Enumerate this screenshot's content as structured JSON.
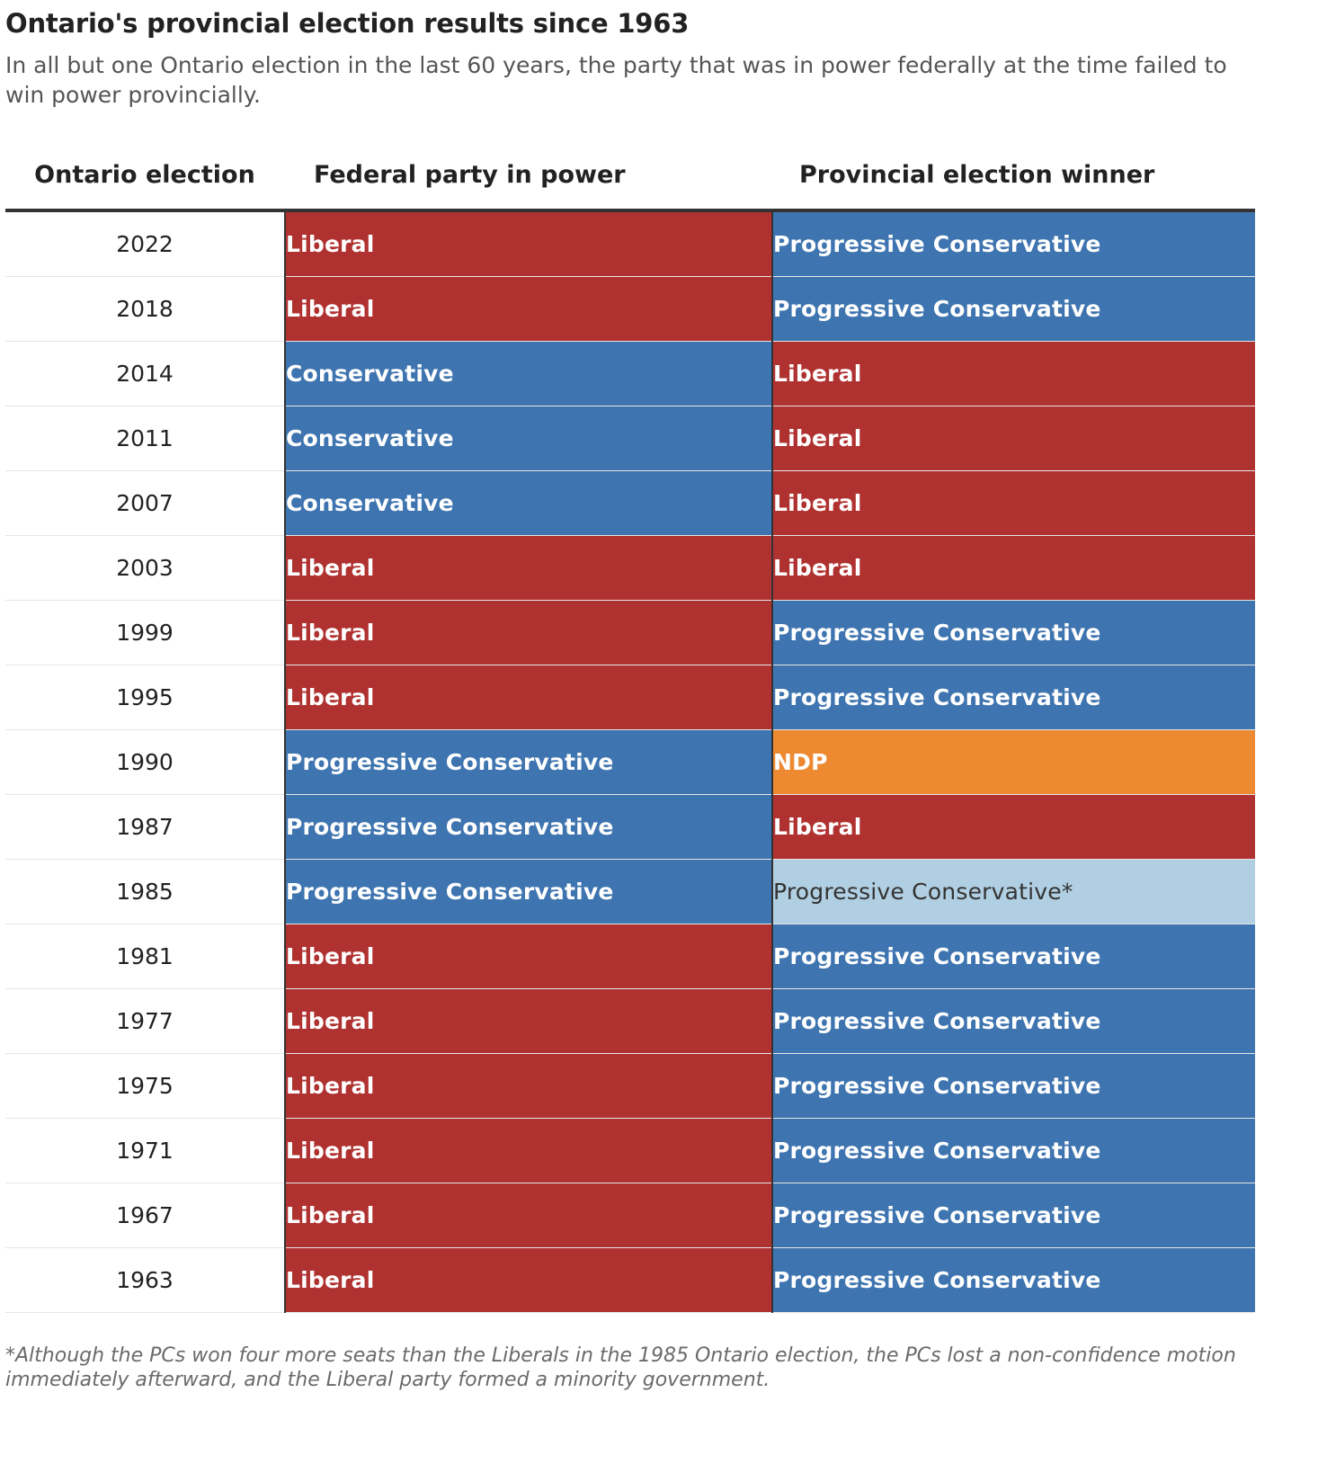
{
  "title": "Ontario's provincial election results since 1963",
  "subtitle": "In all but one Ontario election in the last 60 years, the party that was in power federally at the time failed to win power provincially.",
  "colors": {
    "Liberal": "#b03230",
    "Conservative": "#3e74af",
    "Progressive Conservative": "#3e74af",
    "NDP": "#ec8931",
    "Progressive Conservative*": "#b1cfe2"
  },
  "chart_data": {
    "type": "table",
    "columns": [
      "Ontario election",
      "Federal party in power",
      "Provincial election winner"
    ],
    "rows": [
      {
        "year": "2022",
        "federal": "Liberal",
        "provincial": "Progressive Conservative"
      },
      {
        "year": "2018",
        "federal": "Liberal",
        "provincial": "Progressive Conservative"
      },
      {
        "year": "2014",
        "federal": "Conservative",
        "provincial": "Liberal"
      },
      {
        "year": "2011",
        "federal": "Conservative",
        "provincial": "Liberal"
      },
      {
        "year": "2007",
        "federal": "Conservative",
        "provincial": "Liberal"
      },
      {
        "year": "2003",
        "federal": "Liberal",
        "provincial": "Liberal"
      },
      {
        "year": "1999",
        "federal": "Liberal",
        "provincial": "Progressive Conservative"
      },
      {
        "year": "1995",
        "federal": "Liberal",
        "provincial": "Progressive Conservative"
      },
      {
        "year": "1990",
        "federal": "Progressive Conservative",
        "provincial": "NDP"
      },
      {
        "year": "1987",
        "federal": "Progressive Conservative",
        "provincial": "Liberal"
      },
      {
        "year": "1985",
        "federal": "Progressive Conservative",
        "provincial": "Progressive Conservative*"
      },
      {
        "year": "1981",
        "federal": "Liberal",
        "provincial": "Progressive Conservative"
      },
      {
        "year": "1977",
        "federal": "Liberal",
        "provincial": "Progressive Conservative"
      },
      {
        "year": "1975",
        "federal": "Liberal",
        "provincial": "Progressive Conservative"
      },
      {
        "year": "1971",
        "federal": "Liberal",
        "provincial": "Progressive Conservative"
      },
      {
        "year": "1967",
        "federal": "Liberal",
        "provincial": "Progressive Conservative"
      },
      {
        "year": "1963",
        "federal": "Liberal",
        "provincial": "Progressive Conservative"
      }
    ]
  },
  "footnote": "*Although the PCs won four more seats than the Liberals in the 1985 Ontario election, the PCs lost a non-confidence motion immediately afterward, and the Liberal party formed a minority government."
}
